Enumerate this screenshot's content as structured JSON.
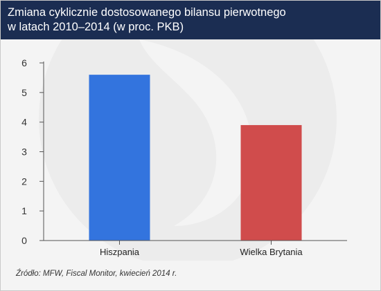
{
  "header": {
    "title_line1": "Zmiana cyklicznie dostosowanego bilansu pierwotnego",
    "title_line2": "w latach 2010–2014 (w proc. PKB)"
  },
  "footer": {
    "source": "Źródło: MFW, Fiscal Monitor, kwiecień 2014 r."
  },
  "colors": {
    "header_bg": "#1b2d52",
    "bar_hiszpania": "#3374de",
    "bar_wielka_brytania": "#d04c4c",
    "axis": "#555555"
  },
  "chart_data": {
    "type": "bar",
    "title": "Zmiana cyklicznie dostosowanego bilansu pierwotnego w latach 2010–2014 (w proc. PKB)",
    "categories": [
      "Hiszpania",
      "Wielka Brytania"
    ],
    "values": [
      5.6,
      3.9
    ],
    "colors": [
      "#3374de",
      "#d04c4c"
    ],
    "ylim": [
      0,
      6
    ],
    "yticks": [
      0,
      1,
      2,
      3,
      4,
      5,
      6
    ],
    "xlabel": "",
    "ylabel": "",
    "grid": false,
    "legend": "none"
  }
}
